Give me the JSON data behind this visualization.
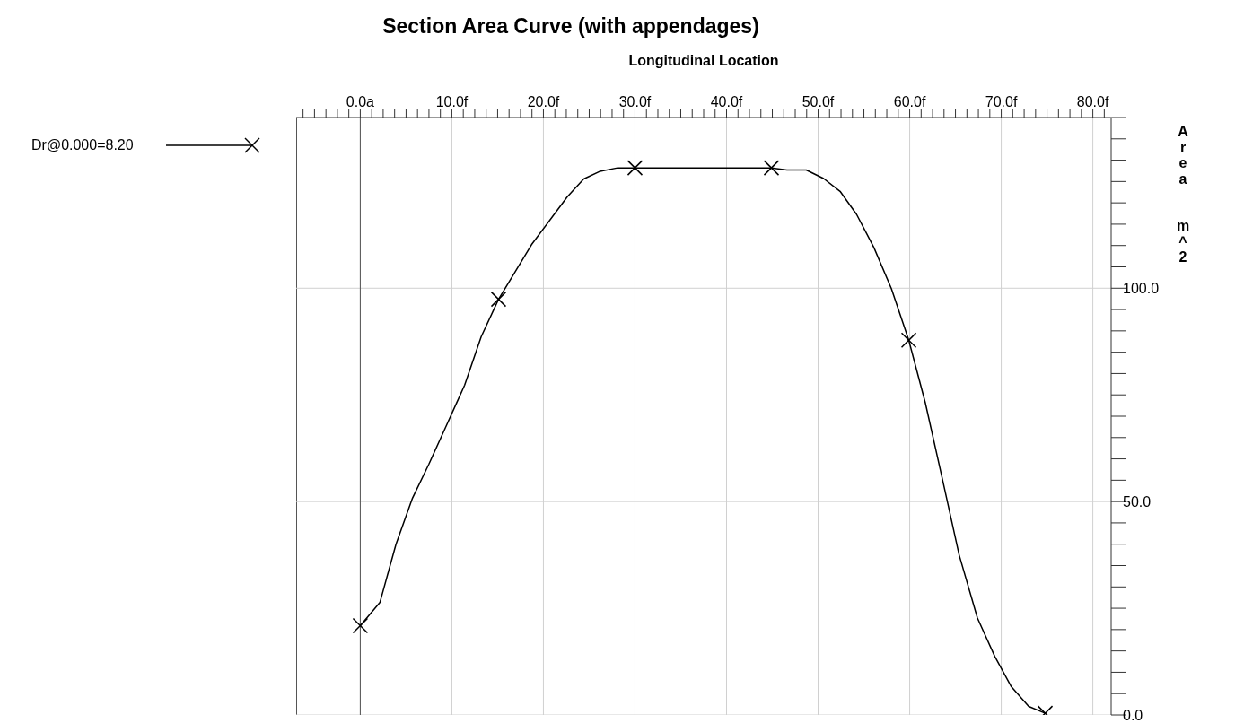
{
  "chart_data": {
    "type": "line",
    "title": "Section Area Curve (with appendages)",
    "xlabel": "Longitudinal Location",
    "ylabel": "Area  m^2",
    "xlim": [
      -7,
      82
    ],
    "ylim": [
      0,
      140
    ],
    "xticks": [
      {
        "value": -6.25,
        "label": null
      },
      {
        "value": -5,
        "label": null
      },
      {
        "value": -3.75,
        "label": null
      },
      {
        "value": -2.5,
        "label": null
      },
      {
        "value": -1.25,
        "label": null
      },
      {
        "value": 0,
        "label": "0.0a"
      },
      {
        "value": 1.25,
        "label": null
      },
      {
        "value": 2.5,
        "label": null
      },
      {
        "value": 3.75,
        "label": null
      },
      {
        "value": 5,
        "label": null
      },
      {
        "value": 6.25,
        "label": null
      },
      {
        "value": 7.5,
        "label": null
      },
      {
        "value": 8.75,
        "label": null
      },
      {
        "value": 10,
        "label": "10.0f"
      },
      {
        "value": 11.25,
        "label": null
      },
      {
        "value": 12.5,
        "label": null
      },
      {
        "value": 13.75,
        "label": null
      },
      {
        "value": 15,
        "label": null
      },
      {
        "value": 16.25,
        "label": null
      },
      {
        "value": 17.5,
        "label": null
      },
      {
        "value": 18.75,
        "label": null
      },
      {
        "value": 20,
        "label": "20.0f"
      },
      {
        "value": 21.25,
        "label": null
      },
      {
        "value": 22.5,
        "label": null
      },
      {
        "value": 23.75,
        "label": null
      },
      {
        "value": 25,
        "label": null
      },
      {
        "value": 26.25,
        "label": null
      },
      {
        "value": 27.5,
        "label": null
      },
      {
        "value": 28.75,
        "label": null
      },
      {
        "value": 30,
        "label": "30.0f"
      },
      {
        "value": 31.25,
        "label": null
      },
      {
        "value": 32.5,
        "label": null
      },
      {
        "value": 33.75,
        "label": null
      },
      {
        "value": 35,
        "label": null
      },
      {
        "value": 36.25,
        "label": null
      },
      {
        "value": 37.5,
        "label": null
      },
      {
        "value": 38.75,
        "label": null
      },
      {
        "value": 40,
        "label": "40.0f"
      },
      {
        "value": 41.25,
        "label": null
      },
      {
        "value": 42.5,
        "label": null
      },
      {
        "value": 43.75,
        "label": null
      },
      {
        "value": 45,
        "label": null
      },
      {
        "value": 46.25,
        "label": null
      },
      {
        "value": 47.5,
        "label": null
      },
      {
        "value": 48.75,
        "label": null
      },
      {
        "value": 50,
        "label": "50.0f"
      },
      {
        "value": 51.25,
        "label": null
      },
      {
        "value": 52.5,
        "label": null
      },
      {
        "value": 53.75,
        "label": null
      },
      {
        "value": 55,
        "label": null
      },
      {
        "value": 56.25,
        "label": null
      },
      {
        "value": 57.5,
        "label": null
      },
      {
        "value": 58.75,
        "label": null
      },
      {
        "value": 60,
        "label": "60.0f"
      },
      {
        "value": 61.25,
        "label": null
      },
      {
        "value": 62.5,
        "label": null
      },
      {
        "value": 63.75,
        "label": null
      },
      {
        "value": 65,
        "label": null
      },
      {
        "value": 66.25,
        "label": null
      },
      {
        "value": 67.5,
        "label": null
      },
      {
        "value": 68.75,
        "label": null
      },
      {
        "value": 70,
        "label": "70.0f"
      },
      {
        "value": 71.25,
        "label": null
      },
      {
        "value": 72.5,
        "label": null
      },
      {
        "value": 73.75,
        "label": null
      },
      {
        "value": 75,
        "label": null
      },
      {
        "value": 76.25,
        "label": null
      },
      {
        "value": 77.5,
        "label": null
      },
      {
        "value": 78.75,
        "label": null
      },
      {
        "value": 80,
        "label": "80.0f"
      },
      {
        "value": 81.25,
        "label": null
      }
    ],
    "yticks": [
      {
        "value": 0,
        "label": "0.0"
      },
      {
        "value": 5,
        "label": null
      },
      {
        "value": 10,
        "label": null
      },
      {
        "value": 15,
        "label": null
      },
      {
        "value": 20,
        "label": null
      },
      {
        "value": 25,
        "label": null
      },
      {
        "value": 30,
        "label": null
      },
      {
        "value": 35,
        "label": null
      },
      {
        "value": 40,
        "label": null
      },
      {
        "value": 45,
        "label": null
      },
      {
        "value": 50,
        "label": "50.0"
      },
      {
        "value": 55,
        "label": null
      },
      {
        "value": 60,
        "label": null
      },
      {
        "value": 65,
        "label": null
      },
      {
        "value": 70,
        "label": null
      },
      {
        "value": 75,
        "label": null
      },
      {
        "value": 80,
        "label": null
      },
      {
        "value": 85,
        "label": null
      },
      {
        "value": 90,
        "label": null
      },
      {
        "value": 95,
        "label": null
      },
      {
        "value": 100,
        "label": "100.0"
      },
      {
        "value": 105,
        "label": null
      },
      {
        "value": 110,
        "label": null
      },
      {
        "value": 115,
        "label": null
      },
      {
        "value": 120,
        "label": null
      },
      {
        "value": 125,
        "label": null
      },
      {
        "value": 130,
        "label": null
      },
      {
        "value": 135,
        "label": null
      },
      {
        "value": 140,
        "label": null
      }
    ],
    "grid": true,
    "legend": "top left",
    "ref_lines": [
      {
        "axis": "x",
        "value": 0,
        "label": null,
        "color": "#555555"
      }
    ],
    "series": [
      {
        "name": "Dr@0.000=8.20",
        "type": "line",
        "marker": "none",
        "color": "#000000",
        "x": [
          0,
          2.15,
          3.9,
          5.7,
          7.5,
          9.4,
          11.4,
          13.2,
          15.1,
          18.7,
          22.6,
          24.4,
          26.2,
          28.1,
          30,
          44.9,
          46.6,
          48.7,
          50.6,
          52.4,
          54.2,
          56.1,
          58,
          59.9,
          61.7,
          63.6,
          65.4,
          67.4,
          69.3,
          71.1,
          73,
          74.8
        ],
        "values": [
          20.9,
          26.4,
          40,
          50.8,
          58.8,
          67.8,
          77.3,
          88.6,
          97.4,
          110.2,
          121.4,
          125.6,
          127.4,
          128.2,
          128.2,
          128.2,
          127.7,
          127.7,
          125.7,
          122.7,
          117.3,
          109.5,
          99.9,
          87.8,
          73.2,
          55,
          37.5,
          22.7,
          13.7,
          6.6,
          2,
          0.4
        ]
      },
      {
        "type": "scatter",
        "marker": "cross",
        "color": "#000000",
        "x": [
          0,
          15.1,
          30,
          44.9,
          59.9,
          74.8
        ],
        "values": [
          20.9,
          97.4,
          128.2,
          128.2,
          87.8,
          0.4
        ]
      }
    ]
  }
}
